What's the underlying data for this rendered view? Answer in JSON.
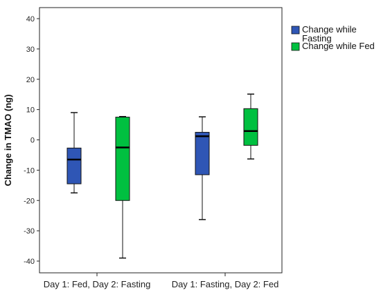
{
  "chart_data": {
    "type": "box",
    "title": "",
    "xlabel": "",
    "ylabel": "Change in TMAO (ng)",
    "ylim": [
      -45,
      45
    ],
    "yticks": [
      40,
      30,
      20,
      10,
      0,
      -10,
      -20,
      -30,
      -40
    ],
    "ytick_labels": [
      "40",
      "30",
      "20",
      "10",
      "0",
      "-10",
      "-20",
      "-30",
      "-40"
    ],
    "categories": [
      "Day 1: Fed, Day 2: Fasting",
      "Day 1: Fasting, Day 2: Fed"
    ],
    "series": [
      {
        "name": "Change while Fasting",
        "color": "#2F56B5",
        "boxes": [
          {
            "min": -17.5,
            "q1": -14.5,
            "median": -6.5,
            "q3": -2.7,
            "max": 9.0
          },
          {
            "min": -26.3,
            "q1": -11.5,
            "median": 1.2,
            "q3": 2.5,
            "max": 7.6
          }
        ]
      },
      {
        "name": "Change while Fed",
        "color": "#00C040",
        "boxes": [
          {
            "min": -39.0,
            "q1": -20.0,
            "median": -2.5,
            "q3": 7.5,
            "max": 7.7
          },
          {
            "min": -6.3,
            "q1": -1.8,
            "median": 2.9,
            "q3": 10.3,
            "max": 15.1
          }
        ]
      }
    ],
    "legend_position": "right",
    "legend_labels": [
      [
        "Change while",
        "Fasting"
      ],
      [
        "Change while Fed"
      ]
    ],
    "grid": false
  }
}
